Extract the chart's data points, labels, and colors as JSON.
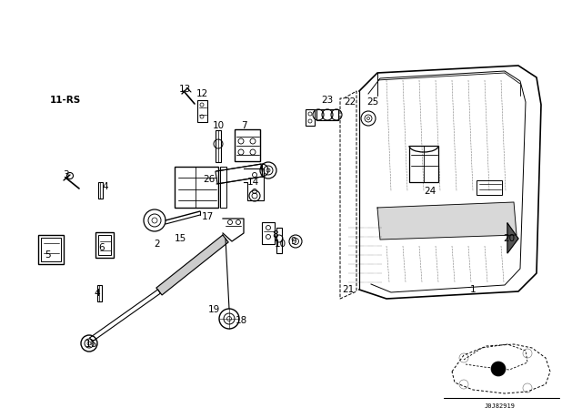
{
  "bg_color": "#ffffff",
  "fig_width": 6.4,
  "fig_height": 4.48,
  "dpi": 100,
  "line_color": "#000000",
  "text_color": "#000000",
  "label_fontsize": 7.5,
  "bold_label": "11-RS",
  "car_code": "J0J82919",
  "labels": [
    [
      "11-RS",
      72,
      110,
      true
    ],
    [
      "1",
      520,
      318,
      false
    ],
    [
      "2",
      173,
      268,
      false
    ],
    [
      "3",
      72,
      192,
      false
    ],
    [
      "4",
      116,
      205,
      false
    ],
    [
      "4",
      107,
      322,
      false
    ],
    [
      "5",
      52,
      280,
      false
    ],
    [
      "6",
      112,
      272,
      false
    ],
    [
      "7",
      268,
      138,
      false
    ],
    [
      "8",
      303,
      258,
      false
    ],
    [
      "9",
      323,
      265,
      false
    ],
    [
      "10",
      240,
      138,
      false
    ],
    [
      "10",
      308,
      268,
      false
    ],
    [
      "12",
      222,
      103,
      false
    ],
    [
      "13",
      203,
      98,
      false
    ],
    [
      "14",
      278,
      200,
      false
    ],
    [
      "15",
      198,
      262,
      false
    ],
    [
      "16",
      100,
      378,
      false
    ],
    [
      "17",
      228,
      238,
      false
    ],
    [
      "18",
      265,
      352,
      false
    ],
    [
      "19",
      235,
      340,
      false
    ],
    [
      "20",
      560,
      262,
      false
    ],
    [
      "21",
      383,
      318,
      false
    ],
    [
      "22",
      385,
      112,
      false
    ],
    [
      "23",
      360,
      110,
      false
    ],
    [
      "24",
      473,
      210,
      false
    ],
    [
      "25",
      410,
      112,
      false
    ],
    [
      "26",
      230,
      197,
      false
    ]
  ]
}
